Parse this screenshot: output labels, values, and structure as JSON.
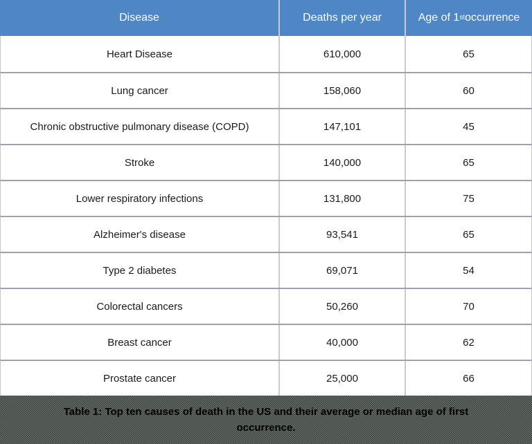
{
  "colors": {
    "header_bg": "#4e86c6",
    "header_text": "#ffffff",
    "row_bg": "#ffffff",
    "row_rule": "#9fa0a8",
    "column_rule": "#cbcbcb",
    "caption_bg": "#4f564f",
    "caption_text": "#000000"
  },
  "table": {
    "columns": [
      {
        "label": "Disease"
      },
      {
        "label": "Deaths per year"
      },
      {
        "label_prefix": "Age of 1",
        "label_sup": "st",
        "label_suffix": " occurrence"
      }
    ]
  },
  "caption": {
    "text": "Table 1: Top ten causes of death in the US and their average or median age of first occurrence."
  },
  "chart_data": {
    "type": "table",
    "title": "Table 1: Top ten causes of death in the US and their average or median age of first occurrence.",
    "columns": [
      "Disease",
      "Deaths per year",
      "Age of 1st occurrence"
    ],
    "rows": [
      [
        "Heart Disease",
        "610,000",
        "65"
      ],
      [
        "Lung cancer",
        "158,060",
        "60"
      ],
      [
        "Chronic obstructive pulmonary disease (COPD)",
        "147,101",
        "45"
      ],
      [
        "Stroke",
        "140,000",
        "65"
      ],
      [
        "Lower respiratory infections",
        "131,800",
        "75"
      ],
      [
        "Alzheimer's disease",
        "93,541",
        "65"
      ],
      [
        "Type 2 diabetes",
        "69,071",
        "54"
      ],
      [
        "Colorectal cancers",
        "50,260",
        "70"
      ],
      [
        "Breast cancer",
        "40,000",
        "62"
      ],
      [
        "Prostate cancer",
        "25,000",
        "66"
      ]
    ]
  }
}
